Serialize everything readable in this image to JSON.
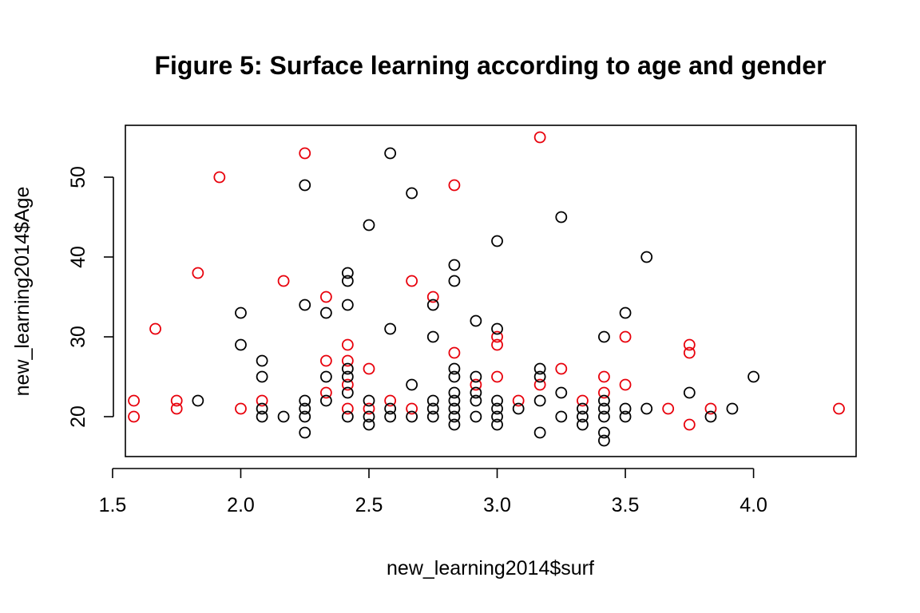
{
  "chart_data": {
    "type": "scatter",
    "title": "Figure 5: Surface learning according to age and gender",
    "xlabel": "new_learning2014$surf",
    "ylabel": "new_learning2014$Age",
    "xlim": [
      1.55,
      4.4
    ],
    "ylim": [
      15,
      56.5
    ],
    "xticks": [
      "1.5",
      "2.0",
      "2.5",
      "3.0",
      "3.5",
      "4.0"
    ],
    "yticks": [
      "20",
      "30",
      "40",
      "50"
    ],
    "grid": false,
    "legend": "none",
    "series": [
      {
        "color": "#e8000b",
        "points": [
          [
            1.583,
            22
          ],
          [
            1.583,
            20
          ],
          [
            1.667,
            31
          ],
          [
            1.75,
            22
          ],
          [
            1.75,
            21
          ],
          [
            1.833,
            38
          ],
          [
            1.917,
            50
          ],
          [
            2.0,
            21
          ],
          [
            2.083,
            22
          ],
          [
            2.167,
            37
          ],
          [
            2.25,
            53
          ],
          [
            2.333,
            35
          ],
          [
            2.333,
            27
          ],
          [
            2.333,
            23
          ],
          [
            2.417,
            29
          ],
          [
            2.417,
            27
          ],
          [
            2.417,
            24
          ],
          [
            2.417,
            21
          ],
          [
            2.5,
            26
          ],
          [
            2.5,
            21
          ],
          [
            2.583,
            22
          ],
          [
            2.667,
            37
          ],
          [
            2.667,
            21
          ],
          [
            2.75,
            35
          ],
          [
            2.833,
            49
          ],
          [
            2.833,
            28
          ],
          [
            2.917,
            24
          ],
          [
            3.0,
            30
          ],
          [
            3.0,
            29
          ],
          [
            3.0,
            25
          ],
          [
            3.083,
            22
          ],
          [
            3.167,
            55
          ],
          [
            3.167,
            24
          ],
          [
            3.25,
            26
          ],
          [
            3.333,
            22
          ],
          [
            3.417,
            25
          ],
          [
            3.417,
            23
          ],
          [
            3.5,
            30
          ],
          [
            3.5,
            24
          ],
          [
            3.667,
            21
          ],
          [
            3.75,
            29
          ],
          [
            3.75,
            28
          ],
          [
            3.75,
            19
          ],
          [
            3.833,
            21
          ],
          [
            4.333,
            21
          ]
        ]
      },
      {
        "color": "#000000",
        "points": [
          [
            1.833,
            22
          ],
          [
            2.0,
            33
          ],
          [
            2.0,
            29
          ],
          [
            2.083,
            27
          ],
          [
            2.083,
            25
          ],
          [
            2.083,
            21
          ],
          [
            2.083,
            20
          ],
          [
            2.167,
            20
          ],
          [
            2.25,
            49
          ],
          [
            2.25,
            34
          ],
          [
            2.25,
            22
          ],
          [
            2.25,
            21
          ],
          [
            2.25,
            20
          ],
          [
            2.25,
            18
          ],
          [
            2.333,
            33
          ],
          [
            2.333,
            25
          ],
          [
            2.333,
            22
          ],
          [
            2.417,
            38
          ],
          [
            2.417,
            37
          ],
          [
            2.417,
            34
          ],
          [
            2.417,
            26
          ],
          [
            2.417,
            25
          ],
          [
            2.417,
            23
          ],
          [
            2.417,
            20
          ],
          [
            2.5,
            44
          ],
          [
            2.5,
            22
          ],
          [
            2.5,
            20
          ],
          [
            2.5,
            19
          ],
          [
            2.583,
            53
          ],
          [
            2.583,
            31
          ],
          [
            2.583,
            21
          ],
          [
            2.583,
            20
          ],
          [
            2.667,
            48
          ],
          [
            2.667,
            24
          ],
          [
            2.667,
            20
          ],
          [
            2.75,
            34
          ],
          [
            2.75,
            30
          ],
          [
            2.75,
            22
          ],
          [
            2.75,
            21
          ],
          [
            2.75,
            20
          ],
          [
            2.833,
            39
          ],
          [
            2.833,
            37
          ],
          [
            2.833,
            26
          ],
          [
            2.833,
            25
          ],
          [
            2.833,
            23
          ],
          [
            2.833,
            22
          ],
          [
            2.833,
            21
          ],
          [
            2.833,
            20
          ],
          [
            2.833,
            19
          ],
          [
            2.917,
            32
          ],
          [
            2.917,
            25
          ],
          [
            2.917,
            23
          ],
          [
            2.917,
            22
          ],
          [
            2.917,
            20
          ],
          [
            3.0,
            42
          ],
          [
            3.0,
            31
          ],
          [
            3.0,
            22
          ],
          [
            3.0,
            21
          ],
          [
            3.0,
            20
          ],
          [
            3.0,
            19
          ],
          [
            3.083,
            21
          ],
          [
            3.167,
            26
          ],
          [
            3.167,
            25
          ],
          [
            3.167,
            22
          ],
          [
            3.167,
            18
          ],
          [
            3.25,
            45
          ],
          [
            3.25,
            23
          ],
          [
            3.25,
            20
          ],
          [
            3.333,
            21
          ],
          [
            3.333,
            20
          ],
          [
            3.333,
            19
          ],
          [
            3.417,
            30
          ],
          [
            3.417,
            22
          ],
          [
            3.417,
            21
          ],
          [
            3.417,
            20
          ],
          [
            3.417,
            18
          ],
          [
            3.417,
            17
          ],
          [
            3.5,
            33
          ],
          [
            3.5,
            21
          ],
          [
            3.5,
            20
          ],
          [
            3.583,
            40
          ],
          [
            3.583,
            21
          ],
          [
            3.75,
            23
          ],
          [
            3.833,
            20
          ],
          [
            3.917,
            21
          ],
          [
            4.0,
            25
          ]
        ]
      }
    ]
  }
}
